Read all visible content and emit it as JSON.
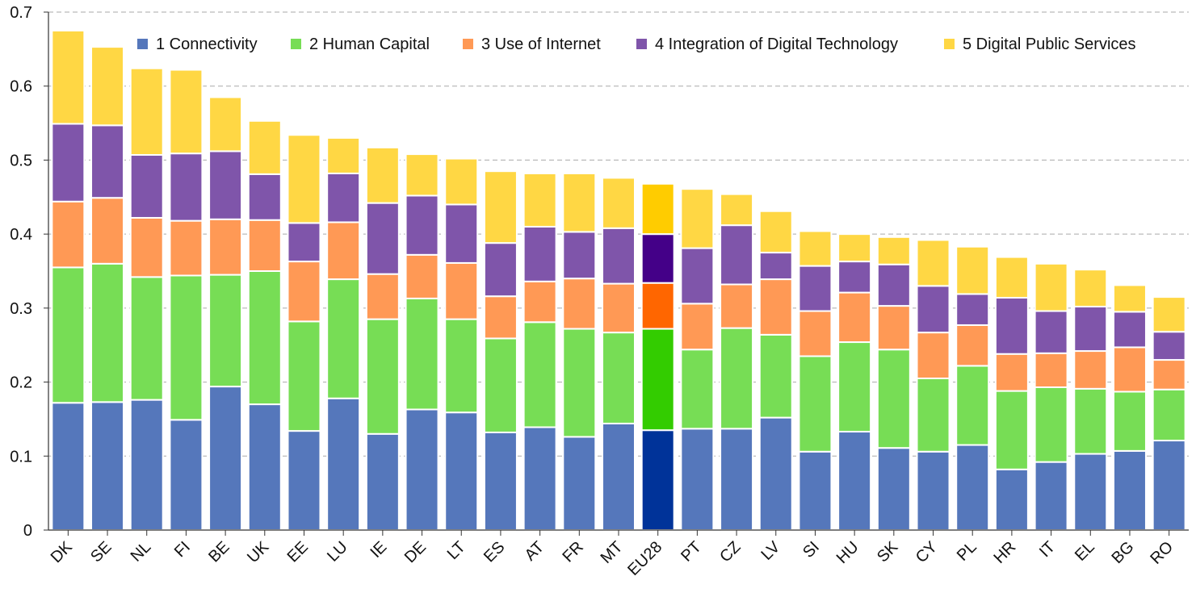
{
  "chart_data": {
    "type": "bar",
    "stacked": true,
    "categories": [
      "DK",
      "SE",
      "NL",
      "FI",
      "BE",
      "UK",
      "EE",
      "LU",
      "IE",
      "DE",
      "LT",
      "ES",
      "AT",
      "FR",
      "MT",
      "EU28",
      "PT",
      "CZ",
      "LV",
      "SI",
      "HU",
      "SK",
      "CY",
      "PL",
      "HR",
      "IT",
      "EL",
      "BG",
      "RO"
    ],
    "series": [
      {
        "name": "1 Connectivity",
        "color": "#5577bb",
        "values": [
          0.172,
          0.173,
          0.176,
          0.149,
          0.194,
          0.17,
          0.134,
          0.178,
          0.13,
          0.163,
          0.159,
          0.132,
          0.139,
          0.126,
          0.144,
          0.135,
          0.137,
          0.137,
          0.152,
          0.106,
          0.133,
          0.111,
          0.106,
          0.115,
          0.082,
          0.092,
          0.103,
          0.107,
          0.121
        ]
      },
      {
        "name": "2 Human Capital",
        "color": "#77dd55",
        "values": [
          0.183,
          0.187,
          0.166,
          0.195,
          0.151,
          0.18,
          0.148,
          0.161,
          0.155,
          0.15,
          0.126,
          0.127,
          0.142,
          0.146,
          0.123,
          0.137,
          0.107,
          0.136,
          0.112,
          0.129,
          0.121,
          0.133,
          0.099,
          0.107,
          0.106,
          0.101,
          0.088,
          0.08,
          0.069
        ]
      },
      {
        "name": "3 Use of Internet",
        "color": "#ff9955",
        "values": [
          0.089,
          0.089,
          0.08,
          0.074,
          0.075,
          0.069,
          0.081,
          0.077,
          0.061,
          0.059,
          0.076,
          0.057,
          0.055,
          0.068,
          0.066,
          0.062,
          0.062,
          0.059,
          0.075,
          0.061,
          0.067,
          0.059,
          0.062,
          0.055,
          0.05,
          0.046,
          0.051,
          0.06,
          0.04
        ]
      },
      {
        "name": "4 Integration of Digital Technology",
        "color": "#7f55aa",
        "values": [
          0.105,
          0.098,
          0.085,
          0.091,
          0.092,
          0.062,
          0.052,
          0.066,
          0.096,
          0.08,
          0.079,
          0.072,
          0.074,
          0.063,
          0.075,
          0.066,
          0.075,
          0.08,
          0.036,
          0.061,
          0.042,
          0.056,
          0.063,
          0.042,
          0.076,
          0.057,
          0.06,
          0.048,
          0.038
        ]
      },
      {
        "name": "5 Digital Public Services",
        "color": "#ffd744",
        "values": [
          0.126,
          0.106,
          0.117,
          0.113,
          0.073,
          0.072,
          0.119,
          0.048,
          0.075,
          0.056,
          0.062,
          0.097,
          0.072,
          0.079,
          0.068,
          0.068,
          0.08,
          0.042,
          0.056,
          0.047,
          0.037,
          0.037,
          0.062,
          0.064,
          0.055,
          0.064,
          0.05,
          0.036,
          0.047
        ]
      }
    ],
    "highlight": {
      "category": "EU28",
      "colors": [
        "#003399",
        "#33cc00",
        "#ff6600",
        "#440088",
        "#ffcc00"
      ]
    },
    "title": "",
    "xlabel": "",
    "ylabel": "",
    "ylim": [
      0,
      0.7
    ],
    "yticks": [
      "0",
      "0.1",
      "0.2",
      "0.3",
      "0.4",
      "0.5",
      "0.6",
      "0.7"
    ],
    "grid": "horizontal-dashed",
    "legend_position": "top"
  }
}
